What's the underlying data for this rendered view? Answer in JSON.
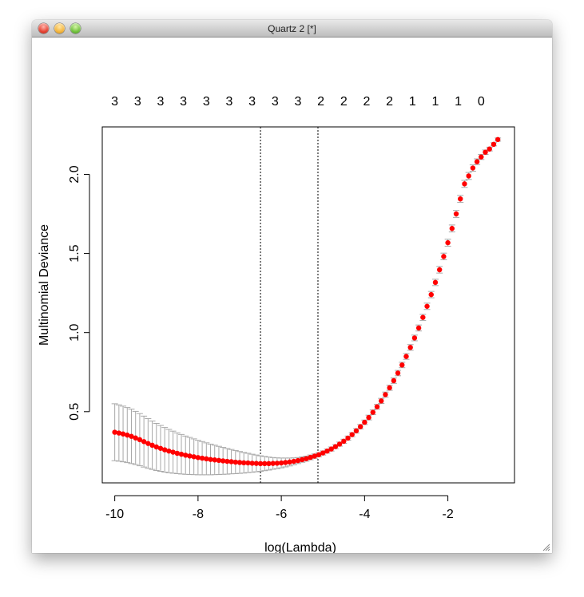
{
  "window": {
    "title": "Quartz 2 [*]"
  },
  "colors": {
    "point": "#ff0000",
    "errorbar": "#a8a8a8",
    "axis": "#000000"
  },
  "chart_data": {
    "type": "scatter",
    "title": "",
    "xlabel": "log(Lambda)",
    "ylabel": "Multinomial Deviance",
    "xlim": [
      -10.3,
      -0.4
    ],
    "ylim": [
      0.05,
      2.3
    ],
    "xticks": [
      -10,
      -8,
      -6,
      -4,
      -2
    ],
    "yticks": [
      0.5,
      1.0,
      1.5,
      2.0
    ],
    "top_axis": {
      "x": [
        -10,
        -9.45,
        -8.9,
        -8.35,
        -7.8,
        -7.25,
        -6.7,
        -6.15,
        -5.6,
        -5.05,
        -4.5,
        -3.95,
        -3.4,
        -2.85,
        -2.3,
        -1.75,
        -1.2
      ],
      "labels": [
        "3",
        "3",
        "3",
        "3",
        "3",
        "3",
        "3",
        "3",
        "3",
        "2",
        "2",
        "2",
        "2",
        "1",
        "1",
        "1",
        "0"
      ]
    },
    "vlines": [
      -6.5,
      -5.12
    ],
    "series": [
      {
        "x": [
          -10,
          -9.9,
          -9.8,
          -9.7,
          -9.6,
          -9.5,
          -9.4,
          -9.3,
          -9.2,
          -9.1,
          -9,
          -8.9,
          -8.8,
          -8.7,
          -8.6,
          -8.5,
          -8.4,
          -8.3,
          -8.2,
          -8.1,
          -8,
          -7.9,
          -7.8,
          -7.7,
          -7.6,
          -7.5,
          -7.4,
          -7.3,
          -7.2,
          -7.1,
          -7,
          -6.9,
          -6.8,
          -6.7,
          -6.6,
          -6.5,
          -6.4,
          -6.3,
          -6.2,
          -6.1,
          -6,
          -5.9,
          -5.8,
          -5.7,
          -5.6,
          -5.5,
          -5.4,
          -5.3,
          -5.2,
          -5.1,
          -5,
          -4.9,
          -4.8,
          -4.7,
          -4.6,
          -4.5,
          -4.4,
          -4.3,
          -4.2,
          -4.1,
          -4,
          -3.9,
          -3.8,
          -3.7,
          -3.6,
          -3.5,
          -3.4,
          -3.3,
          -3.2,
          -3.1,
          -3,
          -2.9,
          -2.8,
          -2.7,
          -2.6,
          -2.5,
          -2.4,
          -2.3,
          -2.2,
          -2.1,
          -2,
          -1.9,
          -1.8,
          -1.7,
          -1.6,
          -1.5,
          -1.4,
          -1.3,
          -1.2,
          -1.1,
          -1,
          -0.9,
          -0.8
        ],
        "y": [
          0.37,
          0.365,
          0.359,
          0.352,
          0.344,
          0.334,
          0.323,
          0.311,
          0.299,
          0.288,
          0.277,
          0.268,
          0.259,
          0.251,
          0.244,
          0.237,
          0.231,
          0.225,
          0.22,
          0.215,
          0.21,
          0.206,
          0.202,
          0.198,
          0.195,
          0.192,
          0.189,
          0.186,
          0.184,
          0.181,
          0.179,
          0.177,
          0.176,
          0.174,
          0.173,
          0.172,
          0.172,
          0.172,
          0.173,
          0.174,
          0.176,
          0.179,
          0.182,
          0.186,
          0.191,
          0.197,
          0.203,
          0.211,
          0.219,
          0.228,
          0.239,
          0.251,
          0.264,
          0.279,
          0.295,
          0.313,
          0.333,
          0.355,
          0.379,
          0.405,
          0.433,
          0.463,
          0.496,
          0.531,
          0.568,
          0.608,
          0.651,
          0.696,
          0.744,
          0.795,
          0.849,
          0.906,
          0.966,
          1.029,
          1.096,
          1.166,
          1.24,
          1.317,
          1.397,
          1.481,
          1.568,
          1.658,
          1.75,
          1.845,
          1.94,
          1.99,
          2.04,
          2.08,
          2.11,
          2.14,
          2.16,
          2.19,
          2.22
        ],
        "err": [
          0.18,
          0.178,
          0.176,
          0.174,
          0.172,
          0.168,
          0.165,
          0.161,
          0.157,
          0.153,
          0.149,
          0.145,
          0.141,
          0.137,
          0.133,
          0.129,
          0.125,
          0.121,
          0.117,
          0.113,
          0.109,
          0.105,
          0.101,
          0.097,
          0.093,
          0.089,
          0.085,
          0.081,
          0.077,
          0.073,
          0.069,
          0.065,
          0.061,
          0.057,
          0.053,
          0.049,
          0.045,
          0.041,
          0.037,
          0.034,
          0.031,
          0.028,
          0.025,
          0.022,
          0.019,
          0.017,
          0.016,
          0.015,
          0.014,
          0.013,
          0.013,
          0.013,
          0.013,
          0.013,
          0.013,
          0.013,
          0.013,
          0.013,
          0.014,
          0.014,
          0.014,
          0.015,
          0.015,
          0.015,
          0.016,
          0.016,
          0.016,
          0.017,
          0.017,
          0.017,
          0.018,
          0.018,
          0.018,
          0.019,
          0.019,
          0.02,
          0.02,
          0.02,
          0.021,
          0.021,
          0.022,
          0.022,
          0.022,
          0.022,
          0.022,
          0.022,
          0.02,
          0.018,
          0.016,
          0.014,
          0.012,
          0.01,
          0.01
        ]
      }
    ]
  }
}
